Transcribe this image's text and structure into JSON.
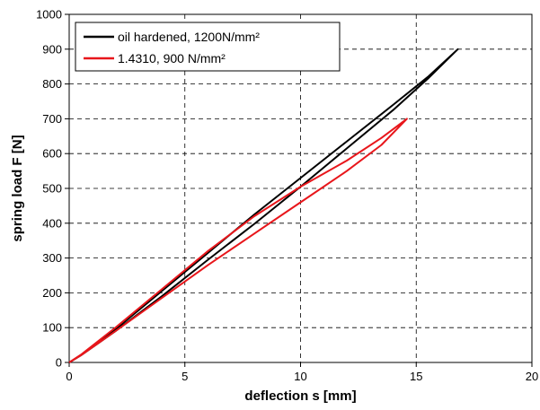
{
  "chart_data": {
    "type": "line",
    "title": "",
    "xlabel": "deflection s [mm]",
    "ylabel": "spring load F [N]",
    "xlim": [
      0,
      20
    ],
    "ylim": [
      0,
      1000
    ],
    "xticks": [
      0,
      5,
      10,
      15,
      20
    ],
    "yticks": [
      0,
      100,
      200,
      300,
      400,
      500,
      600,
      700,
      800,
      900,
      1000
    ],
    "grid": true,
    "legend_position": "top-left",
    "series": [
      {
        "name": "oil hardened, 1200N/mm²",
        "color": "#000000",
        "loading": [
          [
            0,
            0
          ],
          [
            0.5,
            20
          ],
          [
            2,
            95
          ],
          [
            4,
            205
          ],
          [
            6,
            315
          ],
          [
            8,
            425
          ],
          [
            10,
            530
          ],
          [
            12,
            635
          ],
          [
            14,
            740
          ],
          [
            15.5,
            820
          ],
          [
            16.8,
            900
          ]
        ],
        "unloading": [
          [
            16.8,
            900
          ],
          [
            15.5,
            815
          ],
          [
            14,
            725
          ],
          [
            12,
            615
          ],
          [
            10,
            505
          ],
          [
            8,
            398
          ],
          [
            6,
            295
          ],
          [
            4,
            190
          ],
          [
            2,
            90
          ],
          [
            0.5,
            20
          ],
          [
            0,
            0
          ]
        ]
      },
      {
        "name": "1.4310, 900 N/mm²",
        "color": "#e8161b",
        "loading": [
          [
            0,
            0
          ],
          [
            0.5,
            22
          ],
          [
            2,
            100
          ],
          [
            4,
            210
          ],
          [
            6,
            320
          ],
          [
            8,
            420
          ],
          [
            10,
            505
          ],
          [
            12,
            580
          ],
          [
            13.5,
            645
          ],
          [
            14.6,
            700
          ]
        ],
        "unloading": [
          [
            14.6,
            700
          ],
          [
            13.5,
            625
          ],
          [
            12,
            550
          ],
          [
            10,
            460
          ],
          [
            8,
            370
          ],
          [
            6,
            280
          ],
          [
            4,
            185
          ],
          [
            2,
            90
          ],
          [
            0.5,
            20
          ],
          [
            0,
            0
          ]
        ]
      }
    ]
  }
}
